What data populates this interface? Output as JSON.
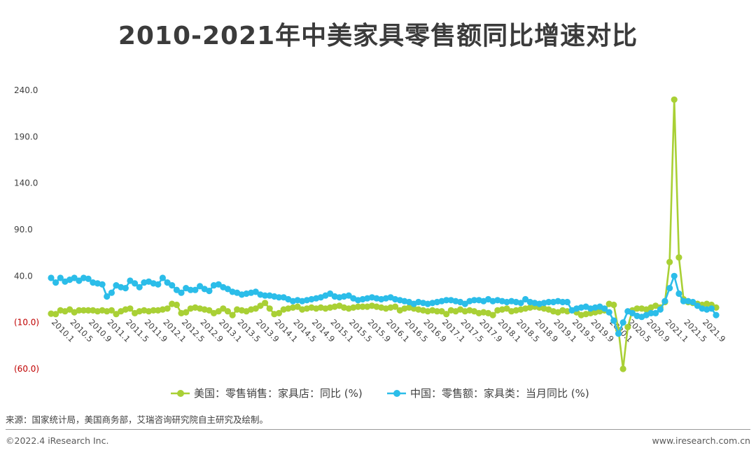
{
  "title": "2010-2021年中美家具零售额同比增速对比",
  "footer": {
    "source": "来源：国家统计局，美国商务部，艾瑞咨询研究院自主研究及绘制。",
    "copyright": "©2022.4 iResearch Inc.",
    "website": "www.iresearch.com.cn"
  },
  "colors": {
    "us": "#a9d035",
    "cn": "#2bbde9",
    "negative_tick": "#c00000"
  },
  "chart_data": {
    "type": "line",
    "title": "2010-2021年中美家具零售额同比增速对比",
    "ylim": [
      -60,
      240
    ],
    "y_ticks": [
      240,
      190,
      140,
      90,
      40,
      -10,
      -60
    ],
    "y_tick_labels": [
      "240.0",
      "190.0",
      "140.0",
      "90.0",
      "40.0",
      "(10.0)",
      "(60.0)"
    ],
    "x_start": "2010.1",
    "x_tick_labels": [
      "2010.1",
      "2010.5",
      "2010.9",
      "2011.1",
      "2011.5",
      "2011.9",
      "2012.1",
      "2012.5",
      "2012.9",
      "2013.1",
      "2013.5",
      "2013.9",
      "2014.1",
      "2014.5",
      "2014.9",
      "2015.1",
      "2015.5",
      "2015.9",
      "2016.1",
      "2016.5",
      "2016.9",
      "2017.1",
      "2017.5",
      "2017.9",
      "2018.1",
      "2018.5",
      "2018.9",
      "2019.1",
      "2019.5",
      "2019.9",
      "2020.1",
      "2020.5",
      "2020.9",
      "2021.1",
      "2021.5",
      "2021.9"
    ],
    "legend_position": "bottom-center",
    "grid": false,
    "series": [
      {
        "name": "美国：零售销售：家具店：同比 (%)",
        "color": "#a9d035",
        "values": [
          -0.5,
          -1,
          3,
          2,
          4,
          1,
          3,
          3,
          3,
          3,
          2,
          3,
          2,
          3,
          -1,
          2,
          4,
          5,
          0,
          2,
          3,
          2,
          3,
          3,
          4,
          5,
          10,
          9,
          0,
          1,
          5,
          6,
          5,
          4,
          3,
          0,
          2,
          5,
          2,
          -2,
          4,
          3,
          2,
          4,
          5,
          8,
          11,
          5,
          -1,
          0,
          4,
          5,
          6,
          7,
          4,
          5,
          6,
          5,
          6,
          5,
          6,
          7,
          8,
          6,
          5,
          6,
          7,
          7,
          7,
          8,
          7,
          6,
          5,
          6,
          7,
          3,
          5,
          6,
          5,
          4,
          3,
          2,
          3,
          2,
          2,
          -1,
          3,
          2,
          4,
          2,
          3,
          2,
          0,
          1,
          0,
          -2,
          3,
          4,
          5,
          2,
          3,
          4,
          5,
          6,
          7,
          6,
          5,
          4,
          2,
          1,
          3,
          2,
          3,
          1,
          -2,
          -1,
          0,
          1,
          2,
          3,
          10,
          9,
          -18,
          -60,
          -15,
          3,
          5,
          5,
          4,
          6,
          8,
          6,
          12,
          55,
          230,
          60,
          15,
          12,
          11,
          10,
          9,
          10,
          9,
          6
        ]
      },
      {
        "name": "中国：零售额：家具类：当月同比 (%)",
        "color": "#2bbde9",
        "values": [
          38,
          33,
          38,
          34,
          36,
          38,
          35,
          38,
          37,
          33,
          32,
          31,
          18,
          22,
          30,
          28,
          27,
          35,
          32,
          28,
          33,
          34,
          32,
          31,
          38,
          33,
          30,
          25,
          22,
          27,
          25,
          25,
          29,
          26,
          24,
          30,
          31,
          28,
          26,
          23,
          22,
          20,
          21,
          22,
          23,
          20,
          19,
          19,
          18,
          17,
          17,
          15,
          13,
          14,
          13,
          14,
          15,
          16,
          17,
          19,
          21,
          18,
          17,
          18,
          19,
          16,
          14,
          15,
          16,
          17,
          16,
          15,
          16,
          17,
          15,
          14,
          13,
          12,
          10,
          12,
          11,
          10,
          11,
          12,
          13,
          14,
          14,
          13,
          12,
          10,
          13,
          14,
          14,
          13,
          15,
          13,
          14,
          13,
          12,
          13,
          12,
          11,
          15,
          12,
          11,
          10,
          11,
          12,
          12,
          13,
          12,
          12,
          3,
          5,
          6,
          7,
          5,
          6,
          7,
          5,
          1,
          -8,
          -22,
          -10,
          2,
          0,
          -3,
          -4,
          -2,
          0,
          0,
          4,
          13,
          27,
          40,
          21,
          13,
          13,
          12,
          8,
          5,
          4,
          5,
          -2
        ]
      }
    ]
  }
}
